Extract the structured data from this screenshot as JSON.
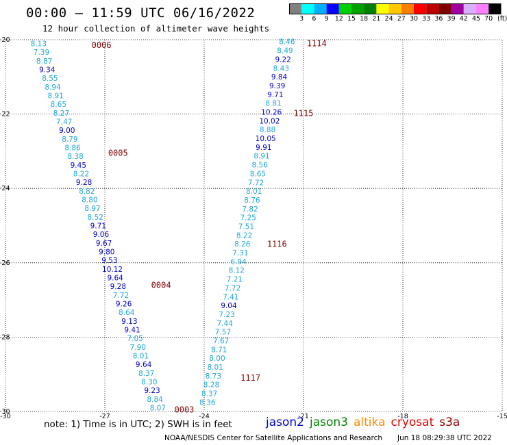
{
  "title": "00:00 – 11:59 UTC 06/16/2022",
  "subtitle": "12 hour collection of altimeter wave heights",
  "colorbar": {
    "labels": [
      "3",
      "6",
      "9",
      "12",
      "15",
      "18",
      "21",
      "24",
      "27",
      "30",
      "33",
      "36",
      "39",
      "42",
      "45",
      "70"
    ],
    "unit": "(ft)",
    "colors": [
      "#808080",
      "#00ffff",
      "#00b0ff",
      "#0000ff",
      "#00d000",
      "#00a000",
      "#008000",
      "#ffff00",
      "#ffc800",
      "#ff8000",
      "#ff0000",
      "#c00000",
      "#800000",
      "#a000a0",
      "#d8b0ff",
      "#ff80ff",
      "#000000"
    ]
  },
  "note": "note: 1) Time is in UTC; 2) SWH is in feet",
  "sources": [
    {
      "name": "jason2",
      "color": "#0000cc"
    },
    {
      "name": "jason3",
      "color": "#008000"
    },
    {
      "name": "altika",
      "color": "#ff8c00"
    },
    {
      "name": "cryosat",
      "color": "#dd0000"
    },
    {
      "name": "s3a",
      "color": "#8b0000"
    }
  ],
  "footer_left": "NOAA/NESDIS Center for Satellite Applications and Research",
  "footer_right": "Jun 18 08:29:38 UTC 2022",
  "colors": {
    "light": "#20a8d8",
    "dark": "#0000cc",
    "time": "#800000"
  },
  "chart_data": {
    "type": "scatter",
    "xlim": [
      -30,
      -15
    ],
    "ylim": [
      -30,
      -20
    ],
    "x_ticks": [
      -30,
      -27,
      -24,
      -21,
      -18,
      -15
    ],
    "y_ticks": [
      -20,
      -22,
      -24,
      -26,
      -28,
      -30
    ],
    "grid": true,
    "series": [
      {
        "track": 1,
        "start": [
          -29.0,
          -20.1
        ],
        "end": [
          -25.4,
          -29.9
        ],
        "values": [
          "8.13",
          "7.39",
          "8.87",
          "9.34",
          "8.55",
          "8.94",
          "8.91",
          "8.65",
          "8.27",
          "7.47",
          "9.00",
          "8.79",
          "8.86",
          "8.38",
          "9.45",
          "8.22",
          "9.28",
          "8.82",
          "8.80",
          "8.97",
          "8.52",
          "9.71",
          "9.06",
          "9.67",
          "9.80",
          "9.53",
          "10.12",
          "9.64",
          "9.28",
          "7.72",
          "9.26",
          "8.64",
          "9.13",
          "9.41",
          "7.05",
          "7.90",
          "8.01",
          "9.64",
          "8.37",
          "8.30",
          "9.23",
          "8.84",
          "8.07"
        ],
        "times": [
          {
            "label": "0006",
            "at": [
              -27.4,
              -20.15
            ]
          },
          {
            "label": "0005",
            "at": [
              -26.9,
              -23.05
            ]
          },
          {
            "label": "0004",
            "at": [
              -25.6,
              -26.6
            ]
          },
          {
            "label": "0003",
            "at": [
              -24.9,
              -29.95
            ]
          }
        ]
      },
      {
        "track": 2,
        "start": [
          -21.5,
          -20.05
        ],
        "end": [
          -23.9,
          -29.75
        ],
        "values": [
          "8.46",
          "8.49",
          "9.22",
          "8.43",
          "9.84",
          "9.39",
          "9.71",
          "8.81",
          "10.26",
          "10.02",
          "8.88",
          "10.05",
          "9.91",
          "8.91",
          "8.56",
          "8.65",
          "7.72",
          "8.01",
          "8.76",
          "7.82",
          "7.25",
          "7.51",
          "8.22",
          "8.26",
          "7.31",
          "6.94",
          "8.12",
          "7.21",
          "7.72",
          "7.41",
          "9.04",
          "7.23",
          "7.44",
          "7.57",
          "7.67",
          "8.71",
          "8.00",
          "8.01",
          "8.73",
          "8.28",
          "8.37",
          "8.36"
        ],
        "times": [
          {
            "label": "1114",
            "at": [
              -20.9,
              -20.1
            ]
          },
          {
            "label": "1115",
            "at": [
              -21.3,
              -21.98
            ]
          },
          {
            "label": "1116",
            "at": [
              -22.1,
              -25.5
            ]
          },
          {
            "label": "1117",
            "at": [
              -22.9,
              -29.1
            ]
          }
        ]
      }
    ]
  }
}
